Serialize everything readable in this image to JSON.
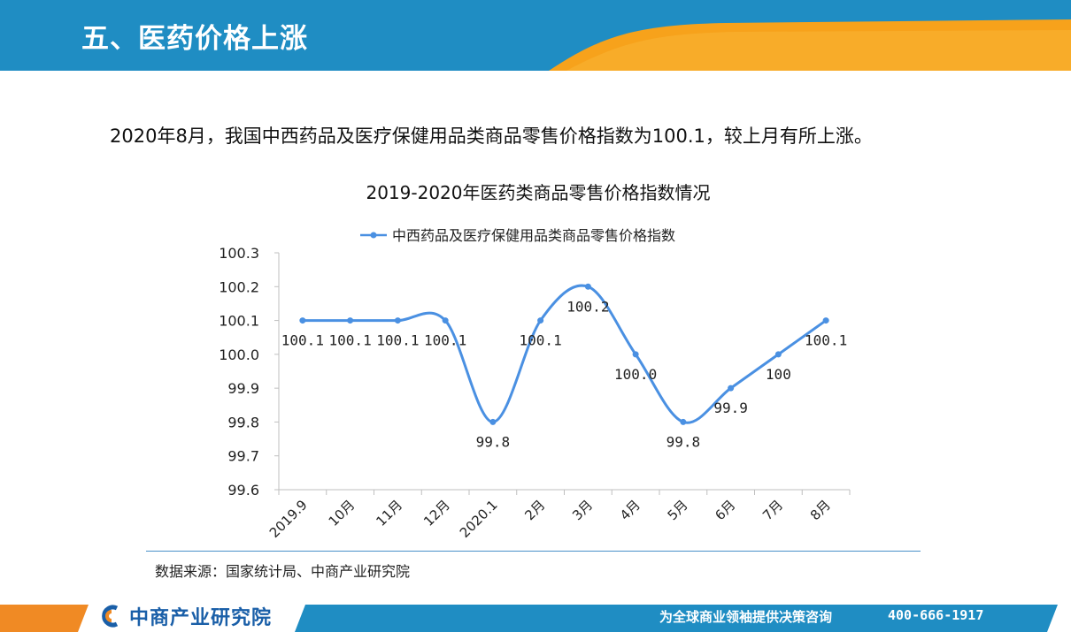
{
  "header": {
    "title": "五、医药价格上涨"
  },
  "summary": {
    "text": "2020年8月，我国中西药品及医疗保健用品类商品零售价格指数为100.1，较上月有所上涨。"
  },
  "chart_data": {
    "type": "line",
    "title": "2019-2020年医药类商品零售价格指数情况",
    "categories": [
      "2019.9",
      "10月",
      "11月",
      "12月",
      "2020.1",
      "2月",
      "3月",
      "4月",
      "5月",
      "6月",
      "7月",
      "8月"
    ],
    "series": [
      {
        "name": "中西药品及医疗保健用品类商品零售价格指数",
        "values": [
          100.1,
          100.1,
          100.1,
          100.1,
          99.8,
          100.1,
          100.2,
          100.0,
          99.8,
          99.9,
          100.0,
          100.1
        ],
        "labels": [
          "100.1",
          "100.1",
          "100.1",
          "100.1",
          "99.8",
          "100.1",
          "100.2",
          "100.0",
          "99.8",
          "99.9",
          "100",
          "100.1"
        ]
      }
    ],
    "ylim": [
      99.6,
      100.3
    ],
    "yticks": [
      "99.6",
      "99.7",
      "99.8",
      "99.9",
      "100.0",
      "100.1",
      "100.2",
      "100.3"
    ],
    "line_style": "smooth",
    "legend_position": "top",
    "grid": false,
    "colors": {
      "series": "#4a90e2",
      "axis": "#bfbfbf"
    }
  },
  "source": {
    "text": "数据来源：国家统计局、中商产业研究院"
  },
  "footer": {
    "logo_text": "中商产业研究院",
    "slogan": "为全球商业领袖提供决策咨询",
    "phone": "400-666-1917"
  },
  "colors": {
    "header_blue": "#1f8dc3",
    "header_orange": "#f7a21b",
    "footer_blue": "#1f8dc3",
    "footer_orange": "#f08a24"
  }
}
